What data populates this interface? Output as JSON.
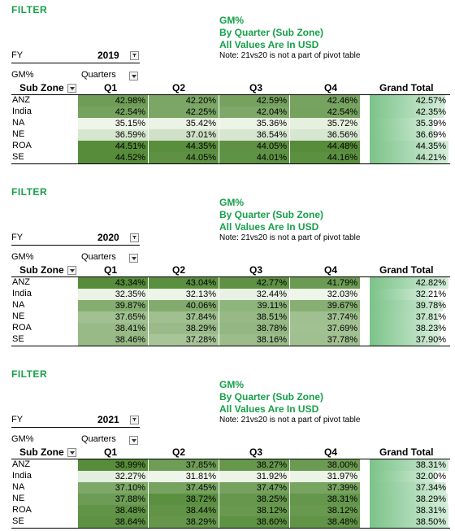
{
  "filter_label": "FILTER",
  "title_lines": [
    "GM%",
    "By Quarter (Sub Zone)",
    "All Values Are In USD"
  ],
  "note": "Note: 21vs20 is not a part of pivot table",
  "fy_label": "FY",
  "measure_label": "GM%",
  "quarters_label": "Quarters",
  "subzone_header": "Sub Zone",
  "column_headers": [
    "Q1",
    "Q2",
    "Q3",
    "Q4",
    "Grand Total"
  ],
  "icons": {
    "filter_dropdown": "filter-dropdown-icon",
    "dropdown": "chevron-down-icon"
  },
  "colors": {
    "accent": "#17a04a",
    "dark": "#568c3a",
    "light": "#eef6ea",
    "grand_total_bar": "#7cc389"
  },
  "tables": [
    {
      "fy": "2019",
      "rows": [
        {
          "zone": "ANZ",
          "values": [
            "42.98%",
            "42.20%",
            "42.59%",
            "42.46%"
          ],
          "total": "42.57%"
        },
        {
          "zone": "India",
          "values": [
            "42.54%",
            "42.25%",
            "42.04%",
            "42.54%"
          ],
          "total": "42.35%"
        },
        {
          "zone": "NA",
          "values": [
            "35.15%",
            "35.42%",
            "35.36%",
            "35.72%"
          ],
          "total": "35.39%"
        },
        {
          "zone": "NE",
          "values": [
            "36.59%",
            "37.01%",
            "36.54%",
            "36.56%"
          ],
          "total": "36.69%"
        },
        {
          "zone": "ROA",
          "values": [
            "44.51%",
            "44.35%",
            "44.05%",
            "44.48%"
          ],
          "total": "44.35%"
        },
        {
          "zone": "SE",
          "values": [
            "44.52%",
            "44.05%",
            "44.01%",
            "44.16%"
          ],
          "total": "44.21%"
        }
      ]
    },
    {
      "fy": "2020",
      "rows": [
        {
          "zone": "ANZ",
          "values": [
            "43.34%",
            "43.04%",
            "42.77%",
            "41.79%"
          ],
          "total": "42.82%"
        },
        {
          "zone": "India",
          "values": [
            "32.35%",
            "32.13%",
            "32.44%",
            "32.03%"
          ],
          "total": "32.21%"
        },
        {
          "zone": "NA",
          "values": [
            "39.87%",
            "40.06%",
            "39.11%",
            "39.67%"
          ],
          "total": "39.78%"
        },
        {
          "zone": "NE",
          "values": [
            "37.65%",
            "37.84%",
            "38.51%",
            "37.74%"
          ],
          "total": "37.81%"
        },
        {
          "zone": "ROA",
          "values": [
            "38.41%",
            "38.29%",
            "38.78%",
            "37.69%"
          ],
          "total": "38.23%"
        },
        {
          "zone": "SE",
          "values": [
            "38.46%",
            "37.28%",
            "38.16%",
            "37.78%"
          ],
          "total": "37.90%"
        }
      ]
    },
    {
      "fy": "2021",
      "rows": [
        {
          "zone": "ANZ",
          "values": [
            "38.99%",
            "37.85%",
            "38.27%",
            "38.00%"
          ],
          "total": "38.31%"
        },
        {
          "zone": "India",
          "values": [
            "32.27%",
            "31.81%",
            "31.92%",
            "31.97%"
          ],
          "total": "32.00%"
        },
        {
          "zone": "NA",
          "values": [
            "37.10%",
            "37.45%",
            "37.47%",
            "37.39%"
          ],
          "total": "37.34%"
        },
        {
          "zone": "NE",
          "values": [
            "37.88%",
            "38.72%",
            "38.25%",
            "38.31%"
          ],
          "total": "38.29%"
        },
        {
          "zone": "ROA",
          "values": [
            "38.48%",
            "38.44%",
            "38.12%",
            "38.12%"
          ],
          "total": "38.31%"
        },
        {
          "zone": "SE",
          "values": [
            "38.64%",
            "38.29%",
            "38.60%",
            "38.48%"
          ],
          "total": "38.50%"
        }
      ]
    }
  ]
}
